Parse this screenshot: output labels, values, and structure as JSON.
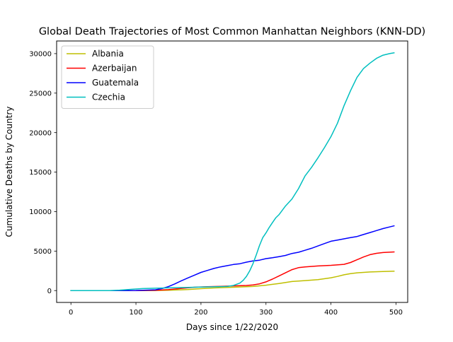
{
  "chart_data": {
    "type": "line",
    "title": "Global Death Trajectories of Most Common Manhattan Neighbors (KNN-DD)",
    "xlabel": "Days since 1/22/2020",
    "ylabel": "Cumulative Deaths by Country",
    "xlim": [
      -22,
      518
    ],
    "ylim": [
      -1500,
      31600
    ],
    "xticks": [
      0,
      100,
      200,
      300,
      400,
      500
    ],
    "yticks": [
      0,
      5000,
      10000,
      15000,
      20000,
      25000,
      30000
    ],
    "grid": false,
    "legend_position": "top-left",
    "series": [
      {
        "name": "Albania",
        "color": "#bfbf00",
        "x": [
          0,
          60,
          100,
          130,
          150,
          180,
          200,
          220,
          250,
          280,
          300,
          320,
          340,
          360,
          380,
          400,
          410,
          420,
          430,
          440,
          460,
          480,
          497
        ],
        "y": [
          0,
          0,
          5,
          15,
          40,
          130,
          240,
          330,
          420,
          520,
          680,
          900,
          1150,
          1260,
          1380,
          1620,
          1790,
          2000,
          2150,
          2250,
          2360,
          2420,
          2450
        ]
      },
      {
        "name": "Azerbaijan",
        "color": "#ff0000",
        "x": [
          0,
          60,
          100,
          130,
          150,
          170,
          190,
          210,
          230,
          250,
          270,
          280,
          290,
          300,
          310,
          320,
          330,
          340,
          350,
          360,
          380,
          400,
          420,
          430,
          440,
          450,
          460,
          470,
          480,
          497
        ],
        "y": [
          0,
          0,
          5,
          30,
          120,
          280,
          420,
          490,
          540,
          590,
          650,
          720,
          850,
          1100,
          1450,
          1850,
          2250,
          2650,
          2900,
          3000,
          3120,
          3200,
          3320,
          3550,
          3900,
          4250,
          4550,
          4720,
          4820,
          4900
        ]
      },
      {
        "name": "Guatemala",
        "color": "#0000ff",
        "x": [
          0,
          60,
          100,
          130,
          140,
          150,
          160,
          170,
          180,
          190,
          200,
          210,
          220,
          230,
          240,
          250,
          260,
          270,
          280,
          290,
          300,
          310,
          320,
          330,
          340,
          350,
          360,
          370,
          380,
          390,
          400,
          410,
          420,
          430,
          440,
          450,
          460,
          470,
          480,
          490,
          497
        ],
        "y": [
          0,
          0,
          10,
          100,
          250,
          500,
          850,
          1250,
          1600,
          1950,
          2300,
          2550,
          2800,
          3000,
          3150,
          3300,
          3400,
          3600,
          3750,
          3850,
          4050,
          4150,
          4300,
          4450,
          4700,
          4850,
          5100,
          5350,
          5650,
          5950,
          6250,
          6400,
          6550,
          6700,
          6850,
          7100,
          7350,
          7600,
          7850,
          8050,
          8200
        ]
      },
      {
        "name": "Czechia",
        "color": "#00bfbf",
        "x": [
          0,
          60,
          75,
          90,
          110,
          130,
          150,
          180,
          200,
          220,
          240,
          250,
          260,
          265,
          270,
          275,
          280,
          285,
          290,
          295,
          300,
          305,
          310,
          315,
          320,
          330,
          340,
          350,
          360,
          370,
          380,
          390,
          400,
          410,
          420,
          430,
          440,
          450,
          460,
          470,
          480,
          490,
          497
        ],
        "y": [
          0,
          0,
          60,
          150,
          250,
          300,
          340,
          400,
          450,
          480,
          520,
          650,
          950,
          1300,
          1800,
          2500,
          3400,
          4500,
          5700,
          6700,
          7300,
          8000,
          8600,
          9200,
          9600,
          10700,
          11600,
          12900,
          14500,
          15600,
          16800,
          18100,
          19500,
          21200,
          23400,
          25300,
          27000,
          28100,
          28800,
          29400,
          29800,
          30000,
          30100
        ]
      }
    ]
  }
}
